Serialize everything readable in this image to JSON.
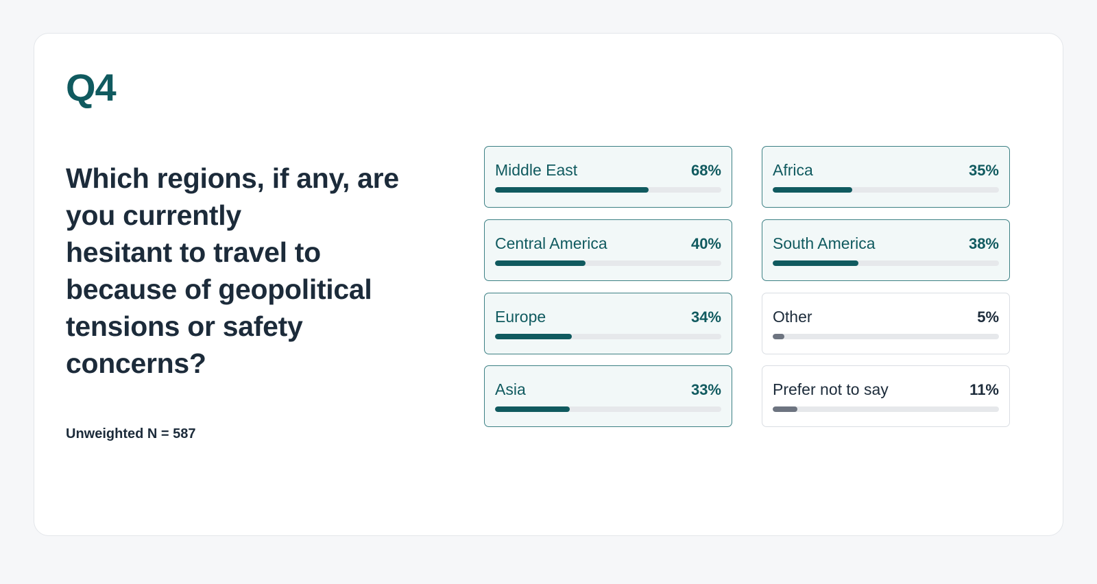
{
  "question": {
    "number": "Q4",
    "lines": [
      "Which regions, if any, are",
      "you currently",
      "hesitant to travel to",
      "because of geopolitical",
      "tensions or safety",
      "concerns?"
    ],
    "base": "Unweighted N = 587"
  },
  "colors": {
    "accent": "#105a5f",
    "accent_border": "#3b7f83",
    "highlight_bg": "#f2f8f8",
    "muted_fill": "#6d7480",
    "track": "#e6e8eb",
    "text": "#1c2b3a"
  },
  "chart_data": {
    "type": "bar",
    "orientation": "horizontal",
    "layout": "two-column grid",
    "categories": [
      "Middle East",
      "Central America",
      "Europe",
      "Asia",
      "Africa",
      "South America",
      "Other",
      "Prefer not to say"
    ],
    "values": [
      68,
      40,
      34,
      33,
      35,
      38,
      5,
      11
    ],
    "value_labels": [
      "68%",
      "40%",
      "34%",
      "33%",
      "35%",
      "38%",
      "5%",
      "11%"
    ],
    "highlighted": [
      true,
      true,
      true,
      true,
      true,
      true,
      false,
      false
    ],
    "unit": "%",
    "xlim": [
      0,
      100
    ]
  }
}
